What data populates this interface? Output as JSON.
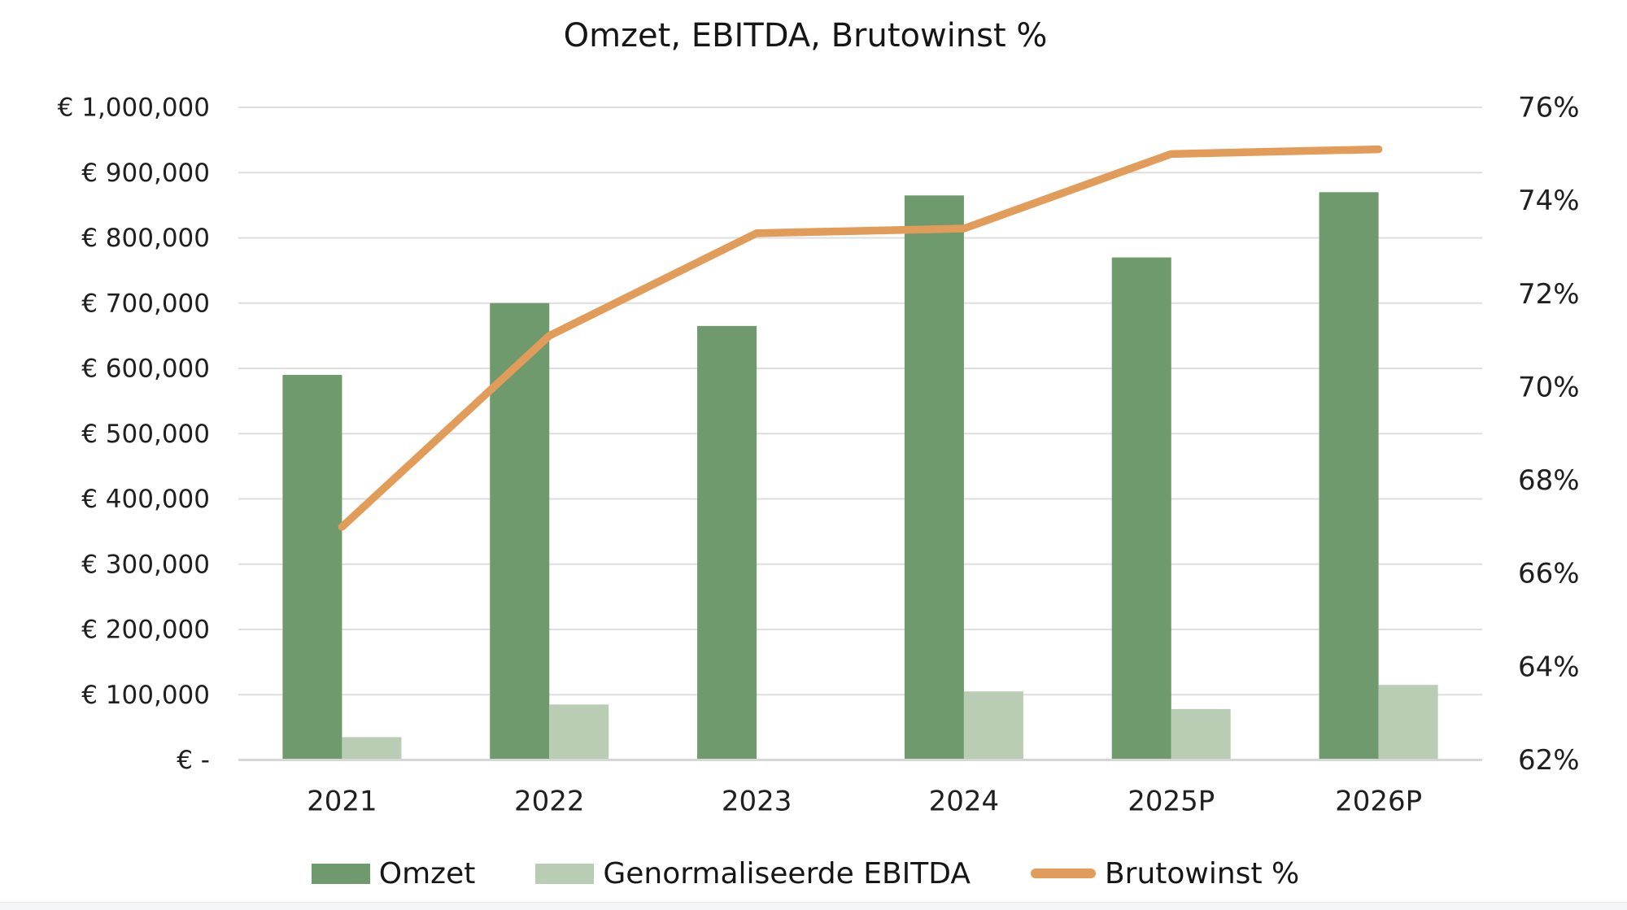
{
  "title": "Omzet, EBITDA, Brutowinst %",
  "chart_data": {
    "type": "bar",
    "subtype": "clustered-bars-with-line-combo",
    "title": "Omzet, EBITDA, Brutowinst %",
    "categories": [
      "2021",
      "2022",
      "2023",
      "2024",
      "2025P",
      "2026P"
    ],
    "series": [
      {
        "name": "Omzet",
        "type": "bar",
        "axis": "left",
        "color": "#6E9A6D",
        "values": [
          590000,
          700000,
          665000,
          865000,
          770000,
          870000
        ]
      },
      {
        "name": "Genormaliseerde EBITDA",
        "type": "bar",
        "axis": "left",
        "color": "#B9CDB4",
        "values": [
          35000,
          85000,
          0,
          105000,
          78000,
          115000
        ]
      },
      {
        "name": "Brutowinst %",
        "type": "line",
        "axis": "right",
        "color": "#E29C5A",
        "values": [
          67.0,
          71.1,
          73.3,
          73.4,
          75.0,
          75.1
        ]
      }
    ],
    "left_axis": {
      "min": 0,
      "max": 1000000,
      "step": 100000,
      "tick_labels": [
        "€ 1,000,000",
        "€ 900,000",
        "€ 800,000",
        "€ 700,000",
        "€ 600,000",
        "€ 500,000",
        "€ 400,000",
        "€ 300,000",
        "€ 200,000",
        "€ 100,000",
        "€ -"
      ]
    },
    "right_axis": {
      "min": 62,
      "max": 76,
      "step": 2,
      "tick_labels": [
        "76%",
        "74%",
        "72%",
        "70%",
        "68%",
        "66%",
        "64%",
        "62%"
      ]
    },
    "grid": true,
    "legend_position": "bottom",
    "colors": {
      "text": "#1f1f1f",
      "gridline": "#dedede",
      "axis_line": "#d6d6d6"
    }
  }
}
